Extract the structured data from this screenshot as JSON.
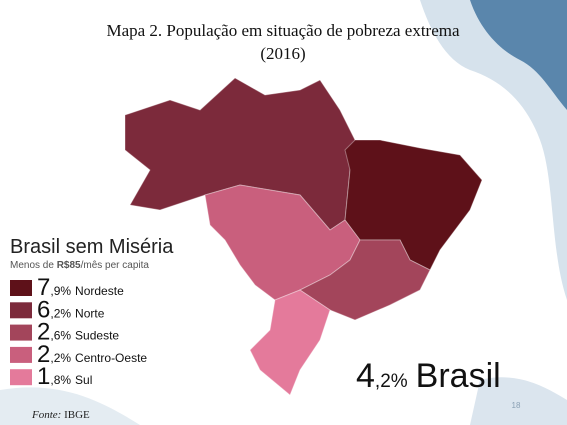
{
  "title": {
    "line1": "Mapa 2. População em situação de pobreza extrema",
    "line2": "(2016)"
  },
  "panel": {
    "heading": "Brasil sem Miséria",
    "subheading": {
      "before": "Menos de ",
      "bold": "R$85",
      "after": "/mês per capita"
    }
  },
  "legend": [
    {
      "big": "7",
      "small": ",9%",
      "region": "Nordeste",
      "color": "#5e1119"
    },
    {
      "big": "6",
      "small": ",2%",
      "region": "Norte",
      "color": "#7c2a3b"
    },
    {
      "big": "2",
      "small": ",6%",
      "region": "Sudeste",
      "color": "#a3455b"
    },
    {
      "big": "2",
      "small": ",2%",
      "region": "Centro-Oeste",
      "color": "#c95f7d"
    },
    {
      "big": "1",
      "small": ",8%",
      "region": "Sul",
      "color": "#e47a9b"
    }
  ],
  "total": {
    "big": "4",
    "small": ",2%",
    "label": "Brasil"
  },
  "source": {
    "label": "Fonte:",
    "text": " IBGE"
  },
  "page_number": "18"
}
